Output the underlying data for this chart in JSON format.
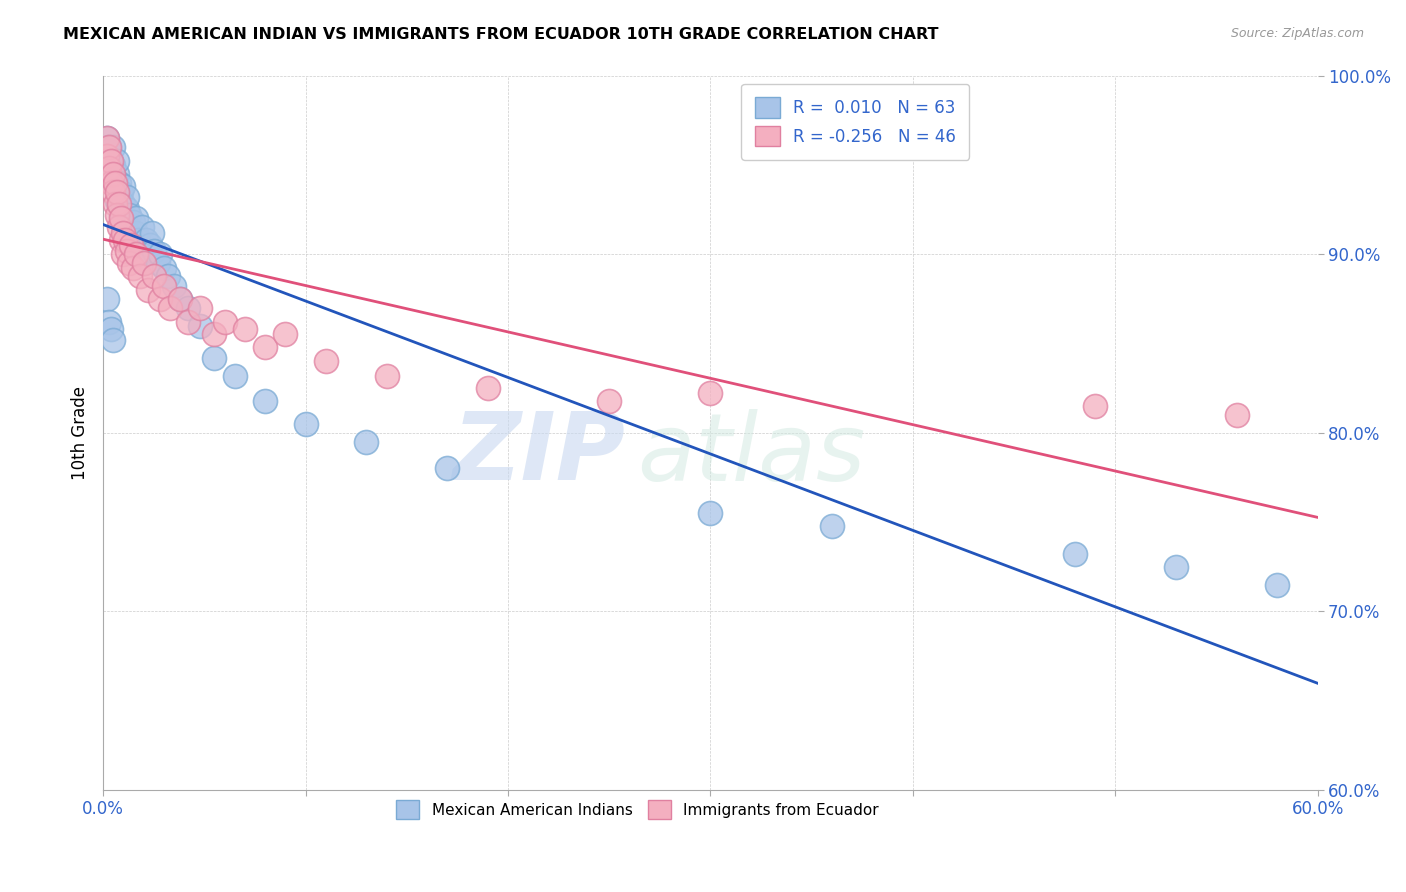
{
  "title": "MEXICAN AMERICAN INDIAN VS IMMIGRANTS FROM ECUADOR 10TH GRADE CORRELATION CHART",
  "source": "Source: ZipAtlas.com",
  "ylabel": "10th Grade",
  "xlim": [
    0.0,
    0.6
  ],
  "ylim": [
    0.6,
    1.0
  ],
  "xticks": [
    0.0,
    0.1,
    0.2,
    0.3,
    0.4,
    0.5,
    0.6
  ],
  "xtick_labels_show": [
    "0.0%",
    "",
    "",
    "",
    "",
    "",
    "60.0%"
  ],
  "yticks": [
    0.6,
    0.7,
    0.8,
    0.9,
    1.0
  ],
  "ytick_labels": [
    "60.0%",
    "70.0%",
    "80.0%",
    "90.0%",
    "100.0%"
  ],
  "blue_color": "#a8c4e8",
  "blue_edge_color": "#7aaad4",
  "pink_color": "#f4afc0",
  "pink_edge_color": "#e080a0",
  "blue_line_color": "#2255bb",
  "pink_line_color": "#e0507a",
  "watermark_zip": "ZIP",
  "watermark_atlas": "atlas",
  "legend_label1": "R =  0.010   N = 63",
  "legend_label2": "R = -0.256   N = 46",
  "blue_r": 0.01,
  "pink_r": -0.256,
  "blue_x": [
    0.002,
    0.002,
    0.003,
    0.003,
    0.003,
    0.004,
    0.004,
    0.005,
    0.005,
    0.006,
    0.006,
    0.007,
    0.007,
    0.007,
    0.008,
    0.008,
    0.009,
    0.009,
    0.01,
    0.01,
    0.01,
    0.011,
    0.011,
    0.012,
    0.012,
    0.013,
    0.013,
    0.014,
    0.015,
    0.016,
    0.016,
    0.017,
    0.018,
    0.019,
    0.02,
    0.021,
    0.022,
    0.023,
    0.024,
    0.025,
    0.027,
    0.028,
    0.03,
    0.032,
    0.035,
    0.038,
    0.042,
    0.048,
    0.055,
    0.065,
    0.08,
    0.1,
    0.13,
    0.17,
    0.3,
    0.36,
    0.48,
    0.53,
    0.58,
    0.002,
    0.003,
    0.004,
    0.005
  ],
  "blue_y": [
    0.96,
    0.965,
    0.96,
    0.95,
    0.958,
    0.952,
    0.945,
    0.96,
    0.95,
    0.938,
    0.942,
    0.93,
    0.945,
    0.952,
    0.928,
    0.94,
    0.922,
    0.935,
    0.918,
    0.928,
    0.938,
    0.912,
    0.92,
    0.925,
    0.932,
    0.915,
    0.922,
    0.91,
    0.918,
    0.912,
    0.92,
    0.908,
    0.902,
    0.915,
    0.895,
    0.908,
    0.9,
    0.905,
    0.912,
    0.902,
    0.895,
    0.9,
    0.892,
    0.888,
    0.882,
    0.875,
    0.87,
    0.86,
    0.842,
    0.832,
    0.818,
    0.805,
    0.795,
    0.78,
    0.755,
    0.748,
    0.732,
    0.725,
    0.715,
    0.875,
    0.862,
    0.858,
    0.852
  ],
  "pink_x": [
    0.002,
    0.002,
    0.003,
    0.003,
    0.004,
    0.004,
    0.005,
    0.005,
    0.006,
    0.006,
    0.007,
    0.007,
    0.008,
    0.008,
    0.009,
    0.009,
    0.01,
    0.01,
    0.011,
    0.012,
    0.013,
    0.014,
    0.015,
    0.016,
    0.018,
    0.02,
    0.022,
    0.025,
    0.028,
    0.03,
    0.033,
    0.038,
    0.042,
    0.048,
    0.055,
    0.06,
    0.07,
    0.08,
    0.09,
    0.11,
    0.14,
    0.19,
    0.25,
    0.3,
    0.49,
    0.56
  ],
  "pink_y": [
    0.965,
    0.955,
    0.96,
    0.948,
    0.952,
    0.94,
    0.945,
    0.935,
    0.94,
    0.928,
    0.935,
    0.922,
    0.928,
    0.915,
    0.92,
    0.908,
    0.912,
    0.9,
    0.908,
    0.902,
    0.895,
    0.905,
    0.892,
    0.9,
    0.888,
    0.895,
    0.88,
    0.888,
    0.875,
    0.882,
    0.87,
    0.875,
    0.862,
    0.87,
    0.855,
    0.862,
    0.858,
    0.848,
    0.855,
    0.84,
    0.832,
    0.825,
    0.818,
    0.822,
    0.815,
    0.81
  ]
}
